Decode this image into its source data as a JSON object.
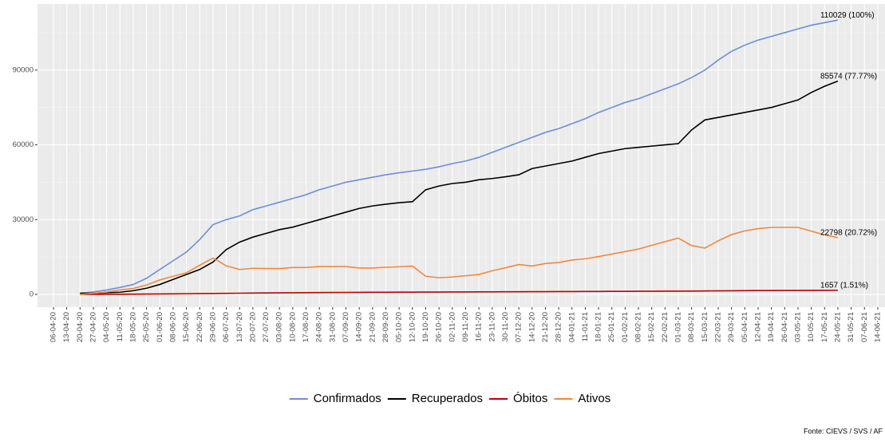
{
  "chart_data": {
    "type": "line",
    "categories": [
      "06-04-20",
      "13-04-20",
      "20-04-20",
      "27-04-20",
      "04-05-20",
      "11-05-20",
      "18-05-20",
      "25-05-20",
      "01-06-20",
      "08-06-20",
      "15-06-20",
      "22-06-20",
      "29-06-20",
      "06-07-20",
      "13-07-20",
      "20-07-20",
      "27-07-20",
      "03-08-20",
      "10-08-20",
      "17-08-20",
      "24-08-20",
      "31-08-20",
      "07-09-20",
      "14-09-20",
      "21-09-20",
      "28-09-20",
      "05-10-20",
      "12-10-20",
      "19-10-20",
      "26-10-20",
      "02-11-20",
      "09-11-20",
      "16-11-20",
      "23-11-20",
      "30-11-20",
      "07-12-20",
      "14-12-20",
      "21-12-20",
      "28-12-20",
      "04-01-21",
      "11-01-21",
      "18-01-21",
      "25-01-21",
      "01-02-21",
      "08-02-21",
      "15-02-21",
      "22-02-21",
      "01-03-21",
      "08-03-21",
      "15-03-21",
      "22-03-21",
      "29-03-21",
      "05-04-21",
      "12-04-21",
      "19-04-21",
      "26-04-21",
      "03-05-21",
      "10-05-21",
      "17-05-21",
      "24-05-21",
      "31-05-21",
      "07-06-21",
      "14-06-21"
    ],
    "series": [
      {
        "name": "Confirmados",
        "color": "#6d8fd8",
        "values": [
          null,
          null,
          500,
          1000,
          1800,
          2800,
          4000,
          6500,
          10000,
          13500,
          17000,
          22000,
          28000,
          30000,
          31500,
          34000,
          35500,
          37000,
          38500,
          40000,
          42000,
          43500,
          45000,
          46000,
          47000,
          48000,
          48800,
          49500,
          50200,
          51200,
          52500,
          53500,
          55000,
          57000,
          59000,
          61000,
          63000,
          65000,
          66500,
          68500,
          70500,
          73000,
          75000,
          77000,
          78500,
          80500,
          82500,
          84500,
          87000,
          90000,
          94000,
          97500,
          100000,
          102000,
          103500,
          105000,
          106500,
          108000,
          109000,
          110029,
          null,
          null,
          null
        ]
      },
      {
        "name": "Recuperados",
        "color": "#000000",
        "values": [
          null,
          null,
          500,
          500,
          700,
          900,
          1500,
          2500,
          4000,
          6000,
          8000,
          10000,
          13000,
          18000,
          21000,
          23000,
          24500,
          26000,
          27000,
          28500,
          30000,
          31500,
          33000,
          34500,
          35500,
          36200,
          36800,
          37200,
          42000,
          43500,
          44500,
          45000,
          46000,
          46500,
          47200,
          48000,
          50500,
          51500,
          52500,
          53500,
          55000,
          56500,
          57500,
          58500,
          59000,
          59500,
          60000,
          60500,
          66000,
          70000,
          71000,
          72000,
          73000,
          74000,
          75000,
          76500,
          78000,
          81000,
          83500,
          85574,
          null,
          null,
          null
        ]
      },
      {
        "name": "Óbitos",
        "color": "#c00000",
        "values": [
          null,
          null,
          20,
          40,
          60,
          90,
          120,
          160,
          200,
          250,
          300,
          350,
          400,
          450,
          500,
          550,
          600,
          640,
          680,
          720,
          760,
          790,
          820,
          850,
          870,
          890,
          910,
          930,
          950,
          970,
          990,
          1010,
          1030,
          1050,
          1070,
          1090,
          1110,
          1130,
          1150,
          1170,
          1190,
          1210,
          1230,
          1250,
          1270,
          1290,
          1310,
          1330,
          1370,
          1410,
          1450,
          1490,
          1520,
          1550,
          1570,
          1590,
          1610,
          1630,
          1645,
          1657,
          null,
          null,
          null
        ]
      },
      {
        "name": "Ativos",
        "color": "#f28a3c",
        "values": [
          null,
          null,
          0,
          500,
          1000,
          1800,
          2400,
          3800,
          5800,
          7300,
          8700,
          11700,
          14600,
          11500,
          10000,
          10500,
          10400,
          10400,
          10800,
          10800,
          11200,
          11200,
          11200,
          10600,
          10600,
          10900,
          11100,
          11400,
          7300,
          6700,
          7000,
          7500,
          8000,
          9500,
          10700,
          12000,
          11400,
          12400,
          12800,
          13800,
          14300,
          15200,
          16200,
          17200,
          18200,
          19700,
          21200,
          22600,
          19600,
          18600,
          21500,
          24000,
          25500,
          26400,
          26900,
          26900,
          26900,
          25400,
          23900,
          22798,
          null,
          null,
          null
        ]
      }
    ],
    "annotations": [
      "110029 (100%)",
      "85574 (77.77%)",
      "1657 (1.51%)",
      "22798 (20.72%)"
    ],
    "ylim": [
      -5100,
      116500
    ],
    "yticks": [
      0,
      30000,
      60000,
      90000
    ],
    "grid": true,
    "caption": "Fonte: CIEVS / SVS / AF"
  }
}
